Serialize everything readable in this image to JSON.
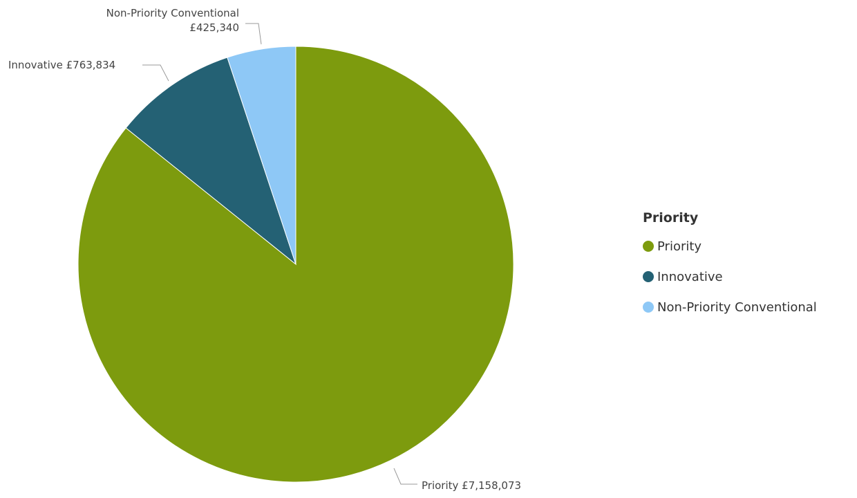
{
  "chart_data": {
    "type": "pie",
    "categories": [
      "Priority",
      "Innovative",
      "Non-Priority Conventional"
    ],
    "values": [
      7158073,
      763834,
      425340
    ],
    "colors": [
      "#7d9b0e",
      "#246174",
      "#8ec8f6"
    ],
    "data_labels": [
      {
        "lines": [
          "Priority £7,158,073"
        ]
      },
      {
        "lines": [
          "Innovative £763,834"
        ]
      },
      {
        "lines": [
          "Non-Priority Conventional",
          "£425,340"
        ]
      }
    ],
    "legend": {
      "title": "Priority",
      "items": [
        "Priority",
        "Innovative",
        "Non-Priority Conventional"
      ],
      "placement": "right"
    }
  }
}
